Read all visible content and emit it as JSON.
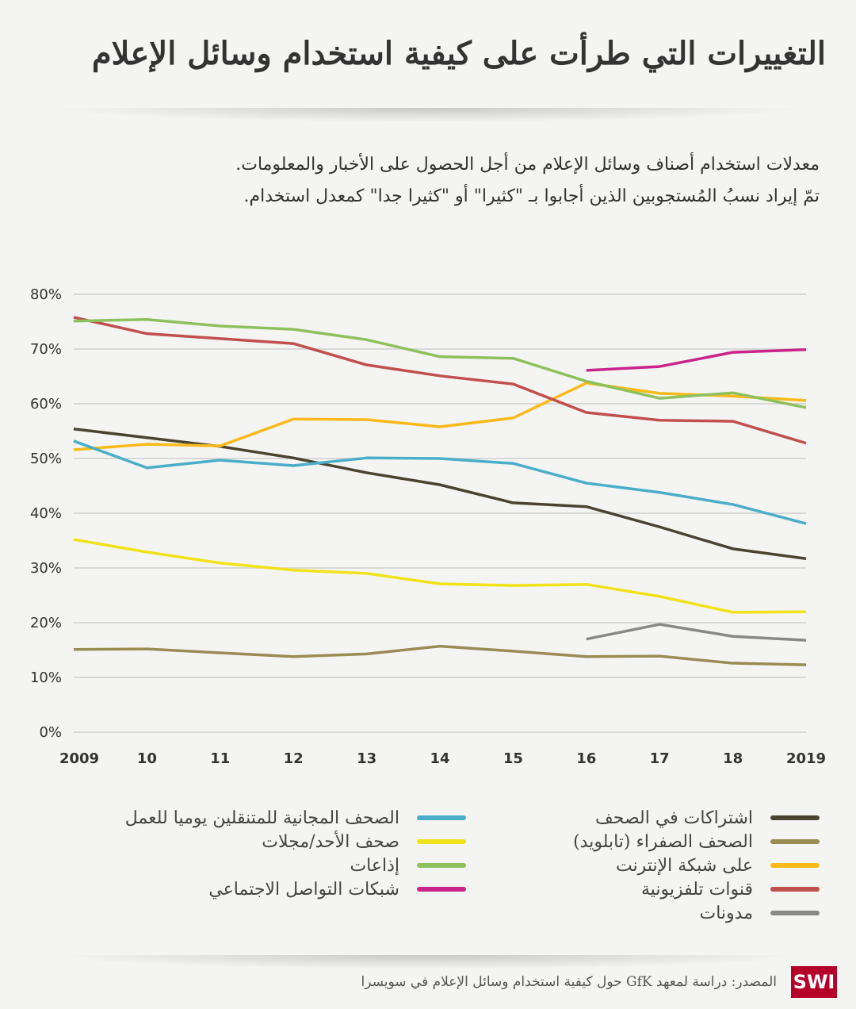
{
  "title": "التغييرات التي طرأت على كيفية استخدام وسائل الإعلام",
  "subtitle": [
    "معدلات استخدام أصناف وسائل الإعلام من أجل الحصول على الأخبار والمعلومات.",
    "تمّ إيراد نسبُ المُستجوبين الذين أجابوا بـ \"كثيرا\" أو \"كثيرا جدا\" كمعدل استخدام."
  ],
  "chart_data": {
    "type": "line",
    "x": [
      2009,
      2010,
      2011,
      2012,
      2013,
      2014,
      2015,
      2016,
      2017,
      2018,
      2019
    ],
    "x_tick_labels": [
      "2009",
      "10",
      "11",
      "12",
      "13",
      "14",
      "15",
      "16",
      "17",
      "18",
      "2019"
    ],
    "y_tick_labels": [
      "0%",
      "10%",
      "20%",
      "30%",
      "40%",
      "50%",
      "60%",
      "70%",
      "80%"
    ],
    "ylim": [
      0,
      80
    ],
    "grid": "horizontal",
    "legend_placement": "bottom",
    "series": [
      {
        "name": "اشتراكات في الصحف",
        "color": "#4a4330",
        "values": [
          55.4,
          53.8,
          52.2,
          50.1,
          47.4,
          45.2,
          41.9,
          41.2,
          37.5,
          33.5,
          31.7
        ]
      },
      {
        "name": "الصحف الصفراء (تابلويد)",
        "color": "#9a8c55",
        "values": [
          15.1,
          15.2,
          14.5,
          13.8,
          14.3,
          15.7,
          14.8,
          13.8,
          13.9,
          12.6,
          12.3
        ]
      },
      {
        "name": "على شبكة الإنترنت",
        "color": "#fbb91a",
        "values": [
          51.6,
          52.6,
          52.3,
          57.2,
          57.1,
          55.8,
          57.4,
          63.8,
          61.9,
          61.4,
          60.6
        ]
      },
      {
        "name": "قنوات تلفزيونية",
        "color": "#c0504d",
        "values": [
          75.8,
          72.8,
          71.9,
          71.0,
          67.1,
          65.1,
          63.6,
          58.4,
          57.0,
          56.8,
          52.8
        ]
      },
      {
        "name": "مدونات",
        "color": "#888888",
        "values": [
          null,
          null,
          null,
          null,
          null,
          null,
          null,
          17.0,
          19.7,
          17.5,
          16.8
        ]
      },
      {
        "name": "الصحف المجانية للمتنقلين يوميا للعمل",
        "color": "#4aaec9",
        "values": [
          53.2,
          48.3,
          49.7,
          48.7,
          50.1,
          50.0,
          49.1,
          45.5,
          43.8,
          41.6,
          38.1
        ]
      },
      {
        "name": "صحف الأحد/مجلات",
        "color": "#f0e31a",
        "values": [
          35.2,
          32.9,
          30.9,
          29.6,
          29.0,
          27.1,
          26.8,
          27.0,
          24.8,
          21.9,
          22.0
        ]
      },
      {
        "name": "إذاعات",
        "color": "#8dc15c",
        "values": [
          75.1,
          75.4,
          74.2,
          73.6,
          71.7,
          68.6,
          68.3,
          64.1,
          61.0,
          62.0,
          59.3
        ]
      },
      {
        "name": "شبكات التواصل الاجتماعي",
        "color": "#c9248a",
        "values": [
          null,
          null,
          null,
          null,
          null,
          null,
          null,
          66.1,
          66.8,
          69.4,
          69.9
        ]
      }
    ]
  },
  "footer": {
    "logo": "SWI",
    "source": "المصدر: دراسة لمعهد GfK حول كيفية استخدام وسائل الإعلام في سويسرا"
  }
}
